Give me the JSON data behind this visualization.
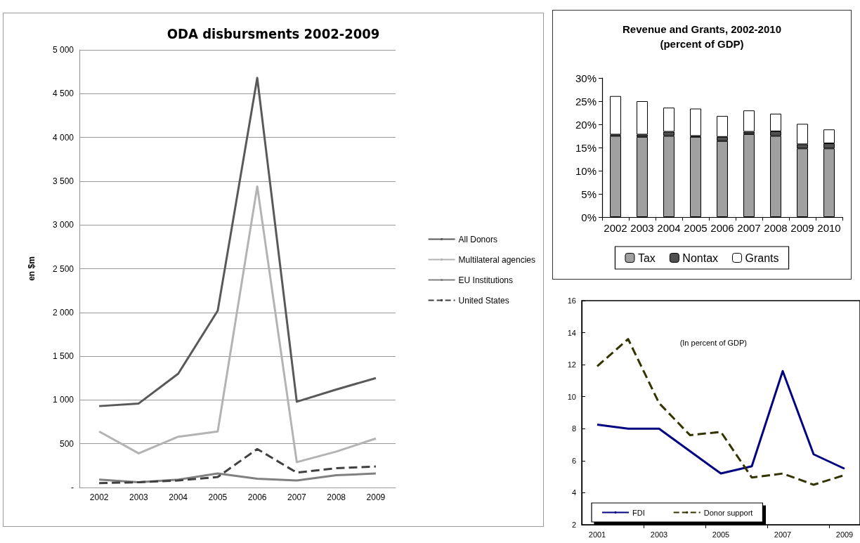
{
  "chart_data": [
    {
      "type": "line",
      "title": "ODA disbursments 2002-2009",
      "ylabel": "en $m",
      "categories": [
        "2002",
        "2003",
        "2004",
        "2005",
        "2006",
        "2007",
        "2008",
        "2009"
      ],
      "series": [
        {
          "name": "All Donors",
          "color": "#595959",
          "line_style": "solid",
          "values": [
            930,
            960,
            1300,
            2020,
            4680,
            980,
            1120,
            1250
          ]
        },
        {
          "name": "Multilateral agencies",
          "color": "#b3b3b3",
          "line_style": "solid",
          "values": [
            640,
            390,
            580,
            640,
            3440,
            290,
            410,
            560
          ]
        },
        {
          "name": "EU Institutions",
          "color": "#808080",
          "line_style": "solid",
          "values": [
            90,
            60,
            90,
            160,
            100,
            80,
            140,
            160
          ]
        },
        {
          "name": "United States",
          "color": "#404040",
          "line_style": "dashed",
          "values": [
            50,
            60,
            80,
            120,
            440,
            170,
            220,
            240
          ]
        }
      ],
      "ylim": [
        0,
        5000
      ],
      "yticks": [
        {
          "value": 0,
          "label": "-"
        },
        500,
        {
          "value": 1000,
          "label": "1 000"
        },
        {
          "value": 1500,
          "label": "1 500"
        },
        {
          "value": 2000,
          "label": "2 000"
        },
        {
          "value": 2500,
          "label": "2 500"
        },
        {
          "value": 3000,
          "label": "3 000"
        },
        {
          "value": 3500,
          "label": "3 500"
        },
        {
          "value": 4000,
          "label": "4 000"
        },
        {
          "value": 4500,
          "label": "4 500"
        },
        {
          "value": 5000,
          "label": "5 000"
        }
      ],
      "grid": "y",
      "legend": "right",
      "marker": "none"
    },
    {
      "type": "bar",
      "title": "Revenue and Grants, 2002-2010",
      "subtitle": "(percent of GDP)",
      "categories": [
        "2002",
        "2003",
        "2004",
        "2005",
        "2006",
        "2007",
        "2008",
        "2009",
        "2010"
      ],
      "stacked": true,
      "series": [
        {
          "name": "Tax",
          "color": "#a0a0a0",
          "values": [
            17.5,
            17.3,
            17.5,
            17.3,
            16.4,
            17.9,
            17.5,
            14.8,
            14.8
          ]
        },
        {
          "name": "Nontax",
          "color": "#505050",
          "values": [
            0.3,
            0.5,
            0.9,
            0.2,
            0.9,
            0.5,
            1.0,
            0.9,
            1.1
          ]
        },
        {
          "name": "Grants",
          "color": "#ffffff",
          "values": [
            8.3,
            7.2,
            5.2,
            5.9,
            4.5,
            4.6,
            3.8,
            4.4,
            3.0
          ]
        }
      ],
      "ylim": [
        0,
        30
      ],
      "yticks": [
        {
          "value": 0,
          "label": "0%"
        },
        {
          "value": 5,
          "label": "5%"
        },
        {
          "value": 10,
          "label": "10%"
        },
        {
          "value": 15,
          "label": "15%"
        },
        {
          "value": 20,
          "label": "20%"
        },
        {
          "value": 25,
          "label": "25%"
        },
        {
          "value": 30,
          "label": "30%"
        }
      ],
      "grid": false,
      "legend": "bottom"
    },
    {
      "type": "line",
      "annotations": [
        "(In percent of GDP)"
      ],
      "categories": [
        "2001",
        null,
        "2003",
        null,
        "2005",
        null,
        "2007",
        null,
        "2009"
      ],
      "series": [
        {
          "name": "FDI",
          "color": "#000080",
          "line_style": "solid",
          "values": [
            8.25,
            8.0,
            8.0,
            6.6,
            5.2,
            5.65,
            11.6,
            6.4,
            5.5
          ]
        },
        {
          "name": "Donor support",
          "color": "#333300",
          "line_style": "dashed",
          "values": [
            11.9,
            13.6,
            9.6,
            7.6,
            7.8,
            4.95,
            5.2,
            4.5,
            5.1
          ]
        }
      ],
      "ylim": [
        2,
        16
      ],
      "yticks": [
        2,
        4,
        6,
        8,
        10,
        12,
        14,
        16
      ],
      "grid": false,
      "legend": "bottom",
      "marker": "none"
    }
  ]
}
